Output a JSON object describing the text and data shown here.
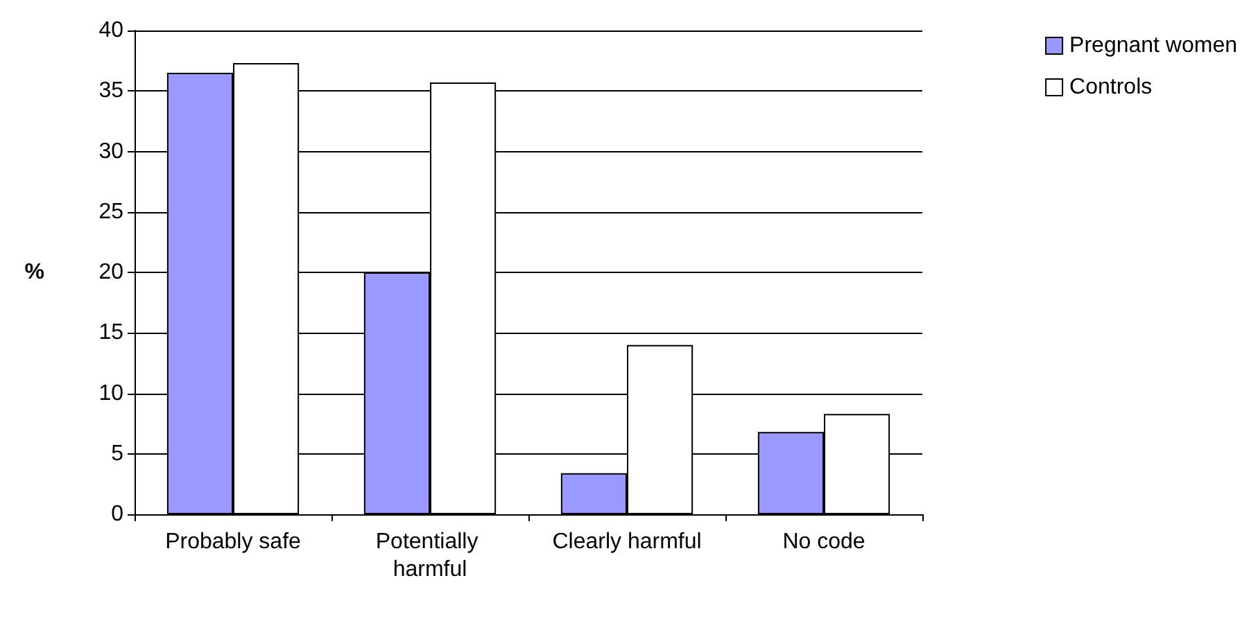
{
  "chart_data": {
    "type": "bar",
    "ylabel": "%",
    "categories": [
      "Probably safe",
      "Potentially harmful",
      "Clearly harmful",
      "No code"
    ],
    "series": [
      {
        "name": "Pregnant women",
        "color": "#9999ff",
        "values": [
          36.5,
          20,
          3.4,
          6.8
        ]
      },
      {
        "name": "Controls",
        "color": "#ffffff",
        "values": [
          37.3,
          35.7,
          14,
          8.3
        ]
      }
    ],
    "ylim": [
      0,
      40
    ],
    "yticks": [
      0,
      5,
      10,
      15,
      20,
      25,
      30,
      35,
      40
    ],
    "grid": "y",
    "legend": "top right"
  }
}
